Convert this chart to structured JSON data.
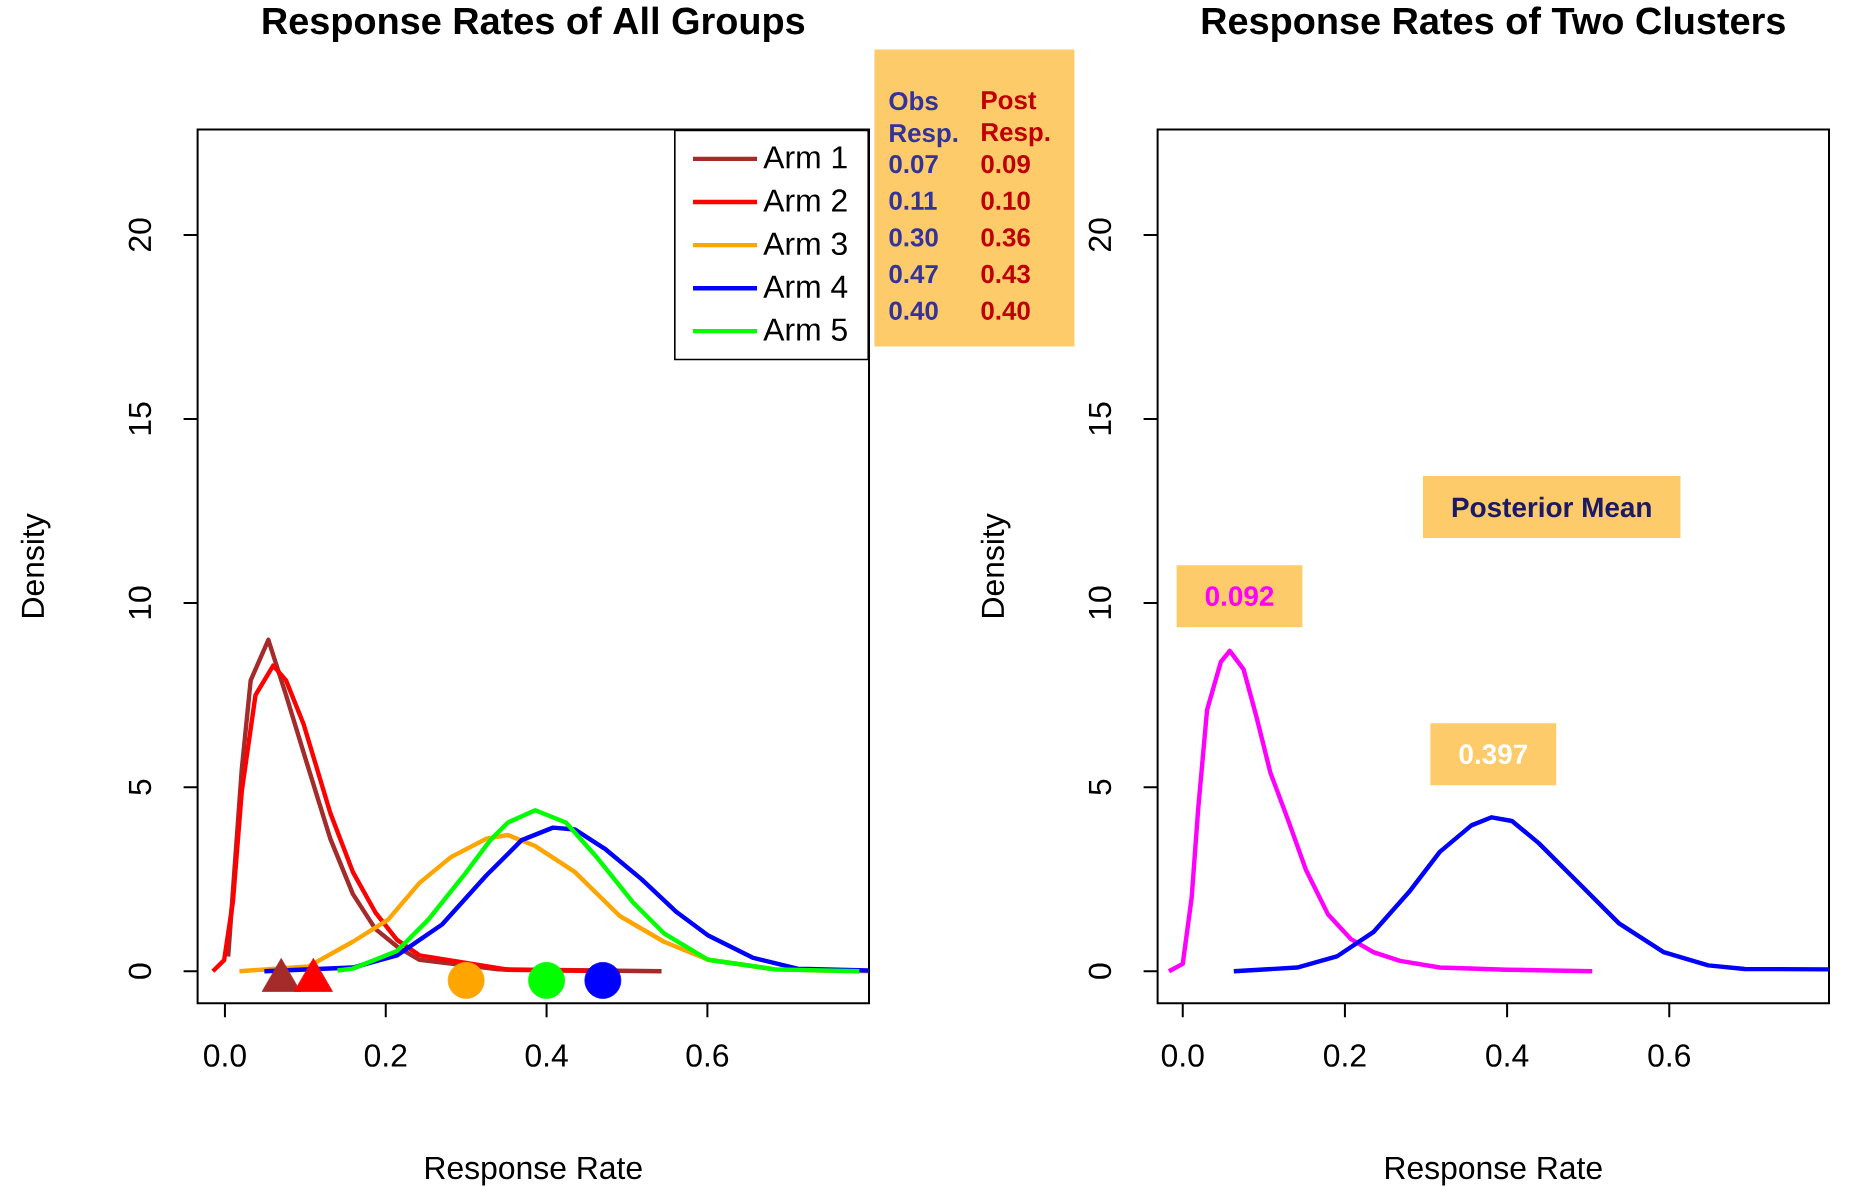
{
  "chart_data": [
    {
      "type": "line",
      "title": "Response Rates of All Groups",
      "xlabel": "Response Rate",
      "ylabel": "Density",
      "xlim": [
        -0.034,
        0.801
      ],
      "ylim": [
        -0.87,
        22.86
      ],
      "xticks": [
        {
          "value": 0,
          "label": "0.0"
        },
        0.2,
        0.4,
        0.6
      ],
      "yticks": [
        0,
        5,
        10,
        15,
        20
      ],
      "legend": "top right",
      "series": [
        {
          "name": "Arm 1",
          "color": "#a52a2a",
          "x": [
            0.004,
            0.021,
            0.032,
            0.054,
            0.076,
            0.104,
            0.131,
            0.159,
            0.187,
            0.214,
            0.242,
            0.34,
            0.543
          ],
          "values": [
            0.4,
            5.5,
            7.9,
            9.0,
            7.5,
            5.5,
            3.6,
            2.1,
            1.15,
            0.67,
            0.31,
            0.05,
            0
          ]
        },
        {
          "name": "Arm 2",
          "color": "#ff0000",
          "x": [
            -0.015,
            -0.001,
            0.01,
            0.021,
            0.038,
            0.06,
            0.076,
            0.098,
            0.131,
            0.159,
            0.187,
            0.214,
            0.242,
            0.352,
            0.491
          ],
          "values": [
            0,
            0.3,
            1.9,
            4.9,
            7.5,
            8.3,
            7.9,
            6.7,
            4.3,
            2.7,
            1.6,
            0.85,
            0.43,
            0.04,
            0
          ]
        },
        {
          "name": "Arm 3",
          "color": "#ffa500",
          "x": [
            0.018,
            0.104,
            0.159,
            0.203,
            0.242,
            0.281,
            0.325,
            0.352,
            0.386,
            0.435,
            0.491,
            0.546,
            0.601,
            0.684,
            0.8
          ],
          "values": [
            0,
            0.13,
            0.8,
            1.4,
            2.4,
            3.1,
            3.6,
            3.7,
            3.4,
            2.7,
            1.5,
            0.8,
            0.31,
            0.05,
            0
          ]
        },
        {
          "name": "Arm 4",
          "color": "#0000ff",
          "x": [
            0.049,
            0.159,
            0.214,
            0.27,
            0.325,
            0.369,
            0.408,
            0.435,
            0.474,
            0.518,
            0.562,
            0.601,
            0.656,
            0.712,
            0.8
          ],
          "values": [
            0,
            0.1,
            0.43,
            1.27,
            2.6,
            3.56,
            3.9,
            3.85,
            3.3,
            2.5,
            1.6,
            0.97,
            0.37,
            0.07,
            0.02
          ]
        },
        {
          "name": "Arm 5",
          "color": "#00ff00",
          "x": [
            0.14,
            0.159,
            0.214,
            0.253,
            0.297,
            0.33,
            0.352,
            0.386,
            0.424,
            0.463,
            0.507,
            0.546,
            0.601,
            0.684,
            0.789
          ],
          "values": [
            0.02,
            0.07,
            0.55,
            1.4,
            2.6,
            3.56,
            4.04,
            4.37,
            4.04,
            3.08,
            1.88,
            1.03,
            0.31,
            0.05,
            0
          ]
        },
        {
          "type": "scatter",
          "marker": "triangle",
          "x": [
            0.07,
            0.11
          ],
          "values": [
            -0.25,
            -0.25
          ],
          "colors": [
            "#a52a2a",
            "#ff0000"
          ]
        },
        {
          "type": "scatter",
          "marker": "circle",
          "x": [
            0.3,
            0.4,
            0.47
          ],
          "values": [
            -0.25,
            -0.25,
            -0.25
          ],
          "colors": [
            "#ffa500",
            "#00ff00",
            "#0000ff"
          ]
        }
      ],
      "annotations": [
        "Obs Resp.",
        "Post Resp.",
        "0.07",
        "0.09",
        "0.11",
        "0.10",
        "0.30",
        "0.36",
        "0.47",
        "0.43",
        "0.40",
        "0.40"
      ]
    },
    {
      "type": "line",
      "title": "Response Rates of Two Clusters",
      "xlabel": "Response Rate",
      "ylabel": "Density",
      "xlim": [
        -0.031,
        0.797
      ],
      "ylim": [
        -0.87,
        22.86
      ],
      "xticks": [
        {
          "value": 0,
          "label": "0.0"
        },
        0.2,
        0.4,
        0.6
      ],
      "yticks": [
        0,
        5,
        10,
        15,
        20
      ],
      "series": [
        {
          "color": "#ff00ff",
          "x": [
            -0.017,
            0.0,
            0.011,
            0.019,
            0.03,
            0.047,
            0.058,
            0.075,
            0.091,
            0.108,
            0.13,
            0.152,
            0.179,
            0.207,
            0.235,
            0.268,
            0.317,
            0.4,
            0.505
          ],
          "values": [
            0,
            0.2,
            2.0,
            4.4,
            7.1,
            8.4,
            8.7,
            8.2,
            6.9,
            5.4,
            4.1,
            2.75,
            1.55,
            0.88,
            0.52,
            0.28,
            0.1,
            0.04,
            0
          ]
        },
        {
          "color": "#0000ff",
          "x": [
            0.063,
            0.141,
            0.19,
            0.235,
            0.279,
            0.317,
            0.356,
            0.381,
            0.406,
            0.439,
            0.483,
            0.538,
            0.593,
            0.648,
            0.693,
            0.797
          ],
          "values": [
            0,
            0.1,
            0.4,
            1.06,
            2.15,
            3.24,
            3.96,
            4.18,
            4.08,
            3.48,
            2.51,
            1.3,
            0.52,
            0.16,
            0.06,
            0.05
          ]
        }
      ],
      "annotations": [
        "Posterior Mean",
        "0.092",
        "0.397"
      ]
    }
  ]
}
